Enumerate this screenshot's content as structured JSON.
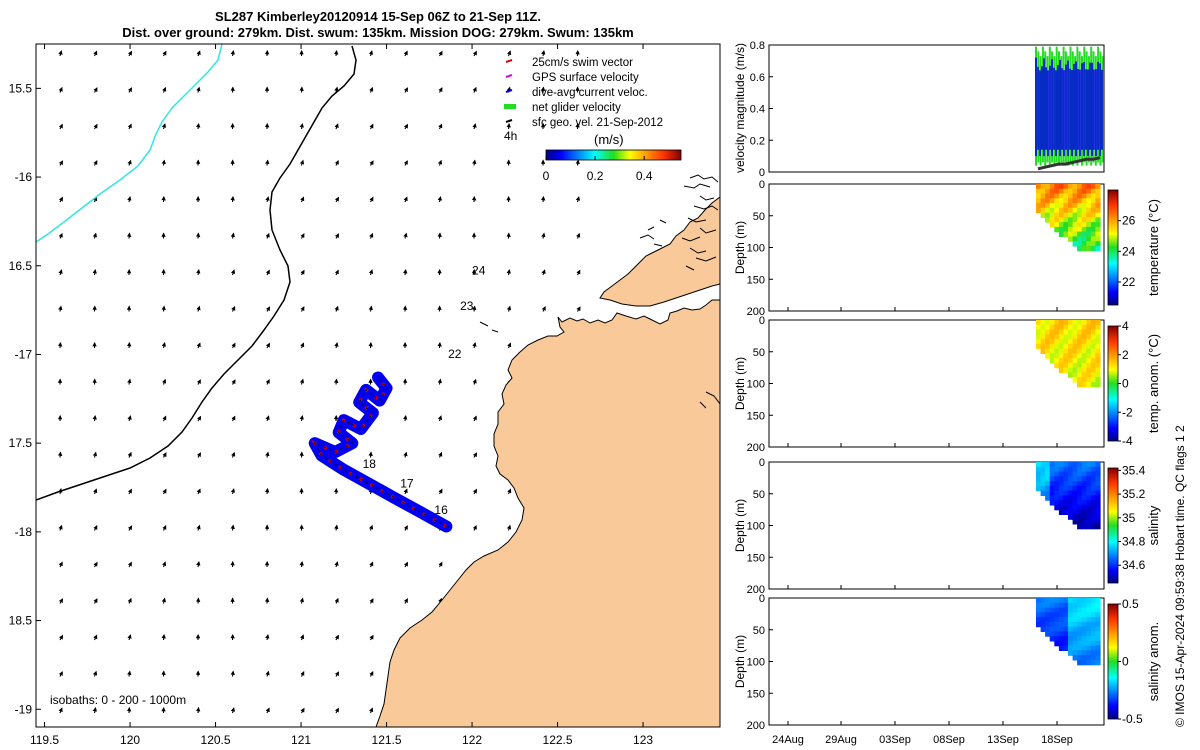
{
  "title_line1": "SL287 Kimberley20120914 15-Sep 06Z to 21-Sep 11Z.",
  "title_line2": "Dist. over ground: 279km. Dist. swum: 135km. Mission DOG: 279km. Swum: 135km",
  "side_note": "© IMOS 15-Apr-2024 09:59:38 Hobart time. QC flags 1  2",
  "colors": {
    "land": "#f9c99a",
    "coast": "#000000",
    "contour": "#000000",
    "isobath_cyan": "#33e5e5",
    "swim": "#e00000",
    "current": "#0000ee",
    "glider": "#22dd22",
    "gps": "#dd00dd"
  },
  "chart_data": [
    {
      "type": "scatter",
      "name": "map",
      "xlim": [
        119.45,
        123.45
      ],
      "ylim": [
        -19.1,
        -15.25
      ],
      "x_ticks": [
        119.5,
        120,
        120.5,
        121,
        121.5,
        122,
        122.5,
        123
      ],
      "x_tick_labels": [
        "119.5",
        "120",
        "120.5",
        "121",
        "121.5",
        "122",
        "122.5",
        "123"
      ],
      "y_ticks": [
        -15.5,
        -16,
        -16.5,
        -17,
        -17.5,
        -18,
        -18.5,
        -19
      ],
      "y_tick_labels": [
        "15.5",
        "-16",
        "16.5",
        "-17",
        "17.5",
        "-18",
        "18.5",
        "-19"
      ],
      "legend": {
        "placement": "top-right",
        "entries": [
          "25cm/s swim vector",
          "GPS surface velocity",
          "dive-avg current veloc.",
          "net glider velocity",
          "sfc geo. vel. 21-Sep-2012"
        ]
      },
      "time_label": "4h",
      "colorbar": {
        "label": "(m/s)",
        "range": [
          0,
          0.55
        ],
        "ticks": [
          0,
          0.2,
          0.4
        ],
        "tick_labels": [
          "0",
          "0.2",
          "0.4"
        ]
      },
      "isobath_note": "isobaths: 0 - 200 - 1000m",
      "day_labels": [
        {
          "text": "24",
          "x": 122.0,
          "y": -16.55
        },
        {
          "text": "23",
          "x": 121.93,
          "y": -16.75
        },
        {
          "text": "22",
          "x": 121.86,
          "y": -17.02
        },
        {
          "text": "18",
          "x": 121.36,
          "y": -17.64
        },
        {
          "text": "17",
          "x": 121.58,
          "y": -17.75
        },
        {
          "text": "16",
          "x": 121.78,
          "y": -17.9
        }
      ],
      "track": [
        [
          121.85,
          -17.97
        ],
        [
          121.7,
          -17.89
        ],
        [
          121.55,
          -17.81
        ],
        [
          121.4,
          -17.73
        ],
        [
          121.25,
          -17.65
        ],
        [
          121.12,
          -17.57
        ],
        [
          121.08,
          -17.5
        ],
        [
          121.2,
          -17.55
        ],
        [
          121.3,
          -17.5
        ],
        [
          121.22,
          -17.44
        ],
        [
          121.25,
          -17.37
        ],
        [
          121.35,
          -17.42
        ],
        [
          121.42,
          -17.33
        ],
        [
          121.34,
          -17.27
        ],
        [
          121.38,
          -17.2
        ],
        [
          121.46,
          -17.26
        ],
        [
          121.5,
          -17.19
        ],
        [
          121.45,
          -17.13
        ]
      ]
    },
    {
      "type": "area",
      "name": "velocity magnitude",
      "ylabel": "velocity magnitude (m/s)",
      "ylim": [
        0,
        0.8
      ],
      "y_ticks": [
        0,
        0.2,
        0.4,
        0.6,
        0.8
      ],
      "y_tick_labels": [
        "0",
        "0.2",
        "0.4",
        "0.6",
        "0.8"
      ],
      "x_range": [
        "15-Sep",
        "21-Sep"
      ],
      "series": [
        {
          "name": "net glider velocity",
          "low": 0.04,
          "high": 0.79
        },
        {
          "name": "dive-avg current veloc.",
          "low": 0.1,
          "high": 0.72
        },
        {
          "name": "sfc geo. vel. 21-Sep-2012",
          "values": [
            0.02,
            0.03,
            0.04,
            0.05,
            0.05,
            0.06,
            0.07,
            0.08,
            0.08,
            0.09
          ]
        }
      ]
    },
    {
      "type": "heatmap",
      "name": "temperature",
      "ylabel": "Depth (m)",
      "clabel": "temperature (°C)",
      "ylim": [
        0,
        200
      ],
      "y_ticks": [
        0,
        50,
        100,
        150,
        200
      ],
      "c_ticks": [
        22,
        24,
        26
      ],
      "c_tick_labels": [
        "22",
        "24",
        "26"
      ],
      "crange": [
        20.5,
        28
      ],
      "max_depth": 105
    },
    {
      "type": "heatmap",
      "name": "temp. anom.",
      "ylabel": "Depth (m)",
      "clabel": "temp. anom. (°C)",
      "ylim": [
        0,
        200
      ],
      "y_ticks": [
        0,
        50,
        100,
        150,
        200
      ],
      "c_ticks": [
        -4,
        -2,
        0,
        2,
        4
      ],
      "c_tick_labels": [
        "-4",
        "-2",
        "0",
        "2",
        "4"
      ],
      "crange": [
        -4,
        4
      ],
      "max_depth": 105
    },
    {
      "type": "heatmap",
      "name": "salinity",
      "ylabel": "Depth (m)",
      "clabel": "salinity",
      "ylim": [
        0,
        200
      ],
      "y_ticks": [
        0,
        50,
        100,
        150,
        200
      ],
      "c_ticks": [
        34.6,
        34.8,
        35,
        35.2,
        35.4
      ],
      "c_tick_labels": [
        "34.6",
        "34.8",
        "35",
        "35.2",
        "35.4"
      ],
      "crange": [
        34.45,
        35.42
      ],
      "max_depth": 105
    },
    {
      "type": "heatmap",
      "name": "salinity anom.",
      "ylabel": "Depth (m)",
      "clabel": "salinity anom.",
      "ylim": [
        0,
        200
      ],
      "y_ticks": [
        0,
        50,
        100,
        150,
        200
      ],
      "c_ticks": [
        -0.5,
        0,
        0.5
      ],
      "c_tick_labels": [
        "-0.5",
        "0",
        "0.5"
      ],
      "crange": [
        -0.5,
        0.5
      ],
      "max_depth": 105,
      "x_ticks": [
        "24Aug",
        "29Aug",
        "03Sep",
        "08Sep",
        "13Sep",
        "18Sep"
      ]
    }
  ]
}
